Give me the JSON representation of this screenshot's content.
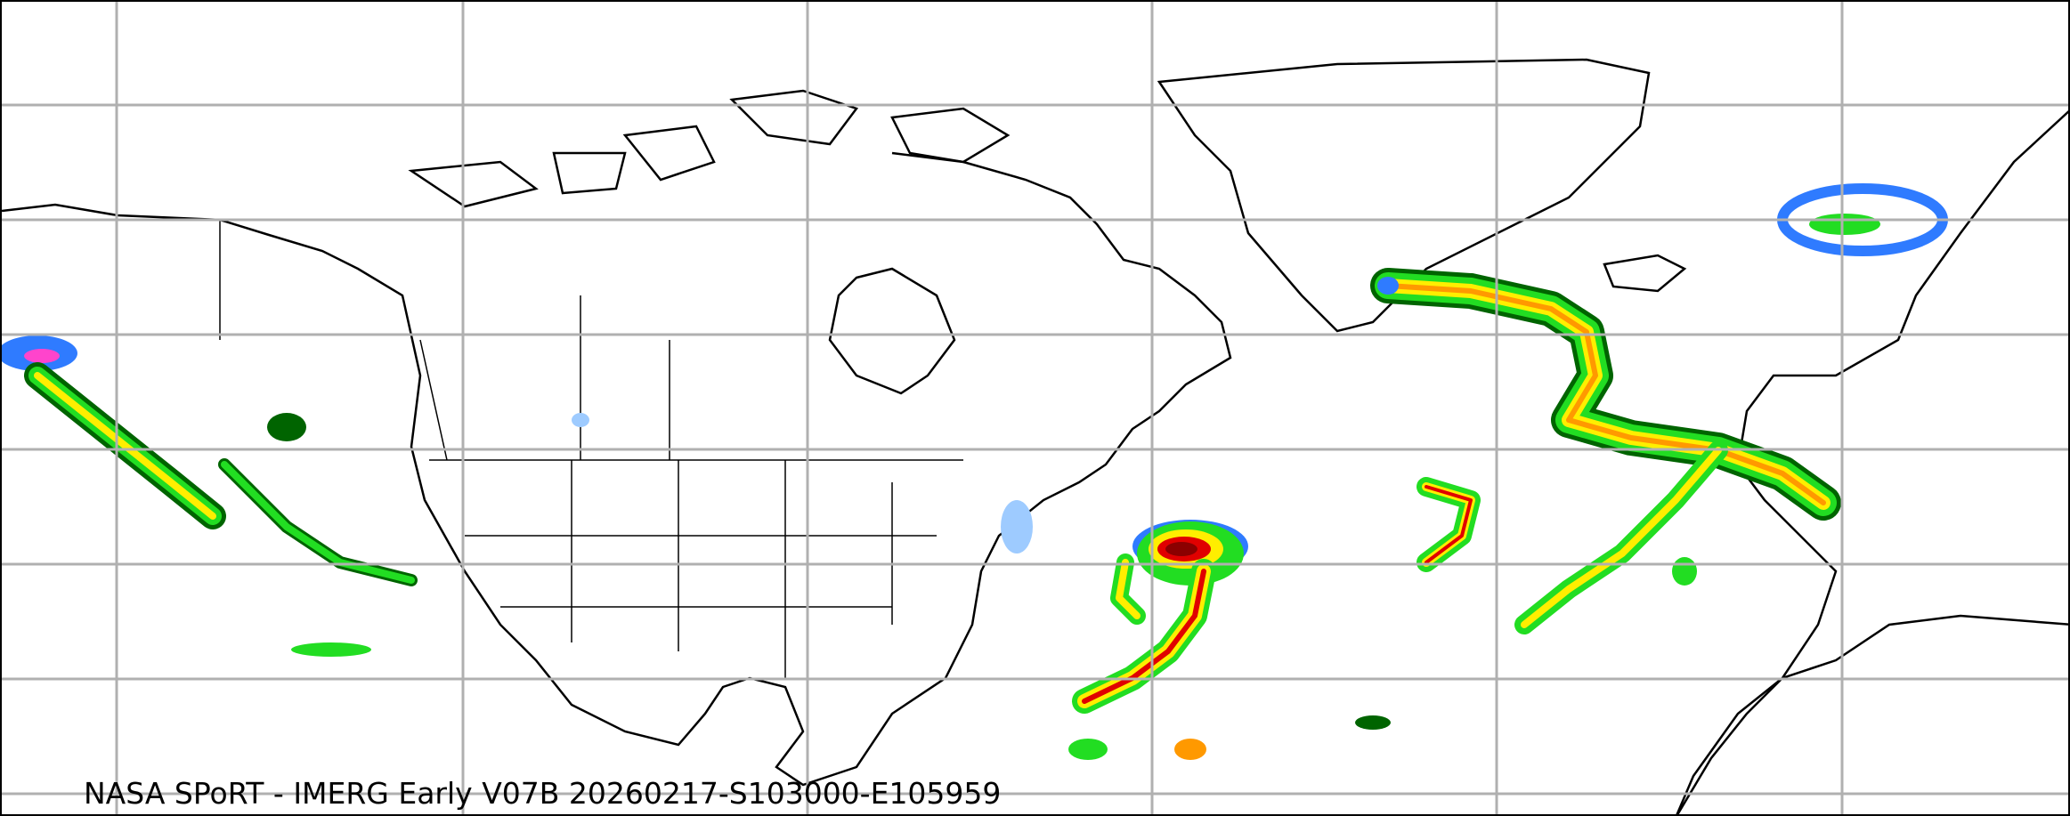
{
  "caption": "NASA SPoRT - IMERG Early V07B 20260217-S103000-E105959",
  "colors": {
    "gridline": "#b0b0b0",
    "coastline": "#000000",
    "light_precip": "#9ecbff",
    "blue": "#2f7bff",
    "dark_green": "#006400",
    "green": "#22dd22",
    "yellow": "#ffee00",
    "orange": "#ff9900",
    "red": "#e00000",
    "dark_red": "#8b0000",
    "magenta": "#ff44cc"
  }
}
